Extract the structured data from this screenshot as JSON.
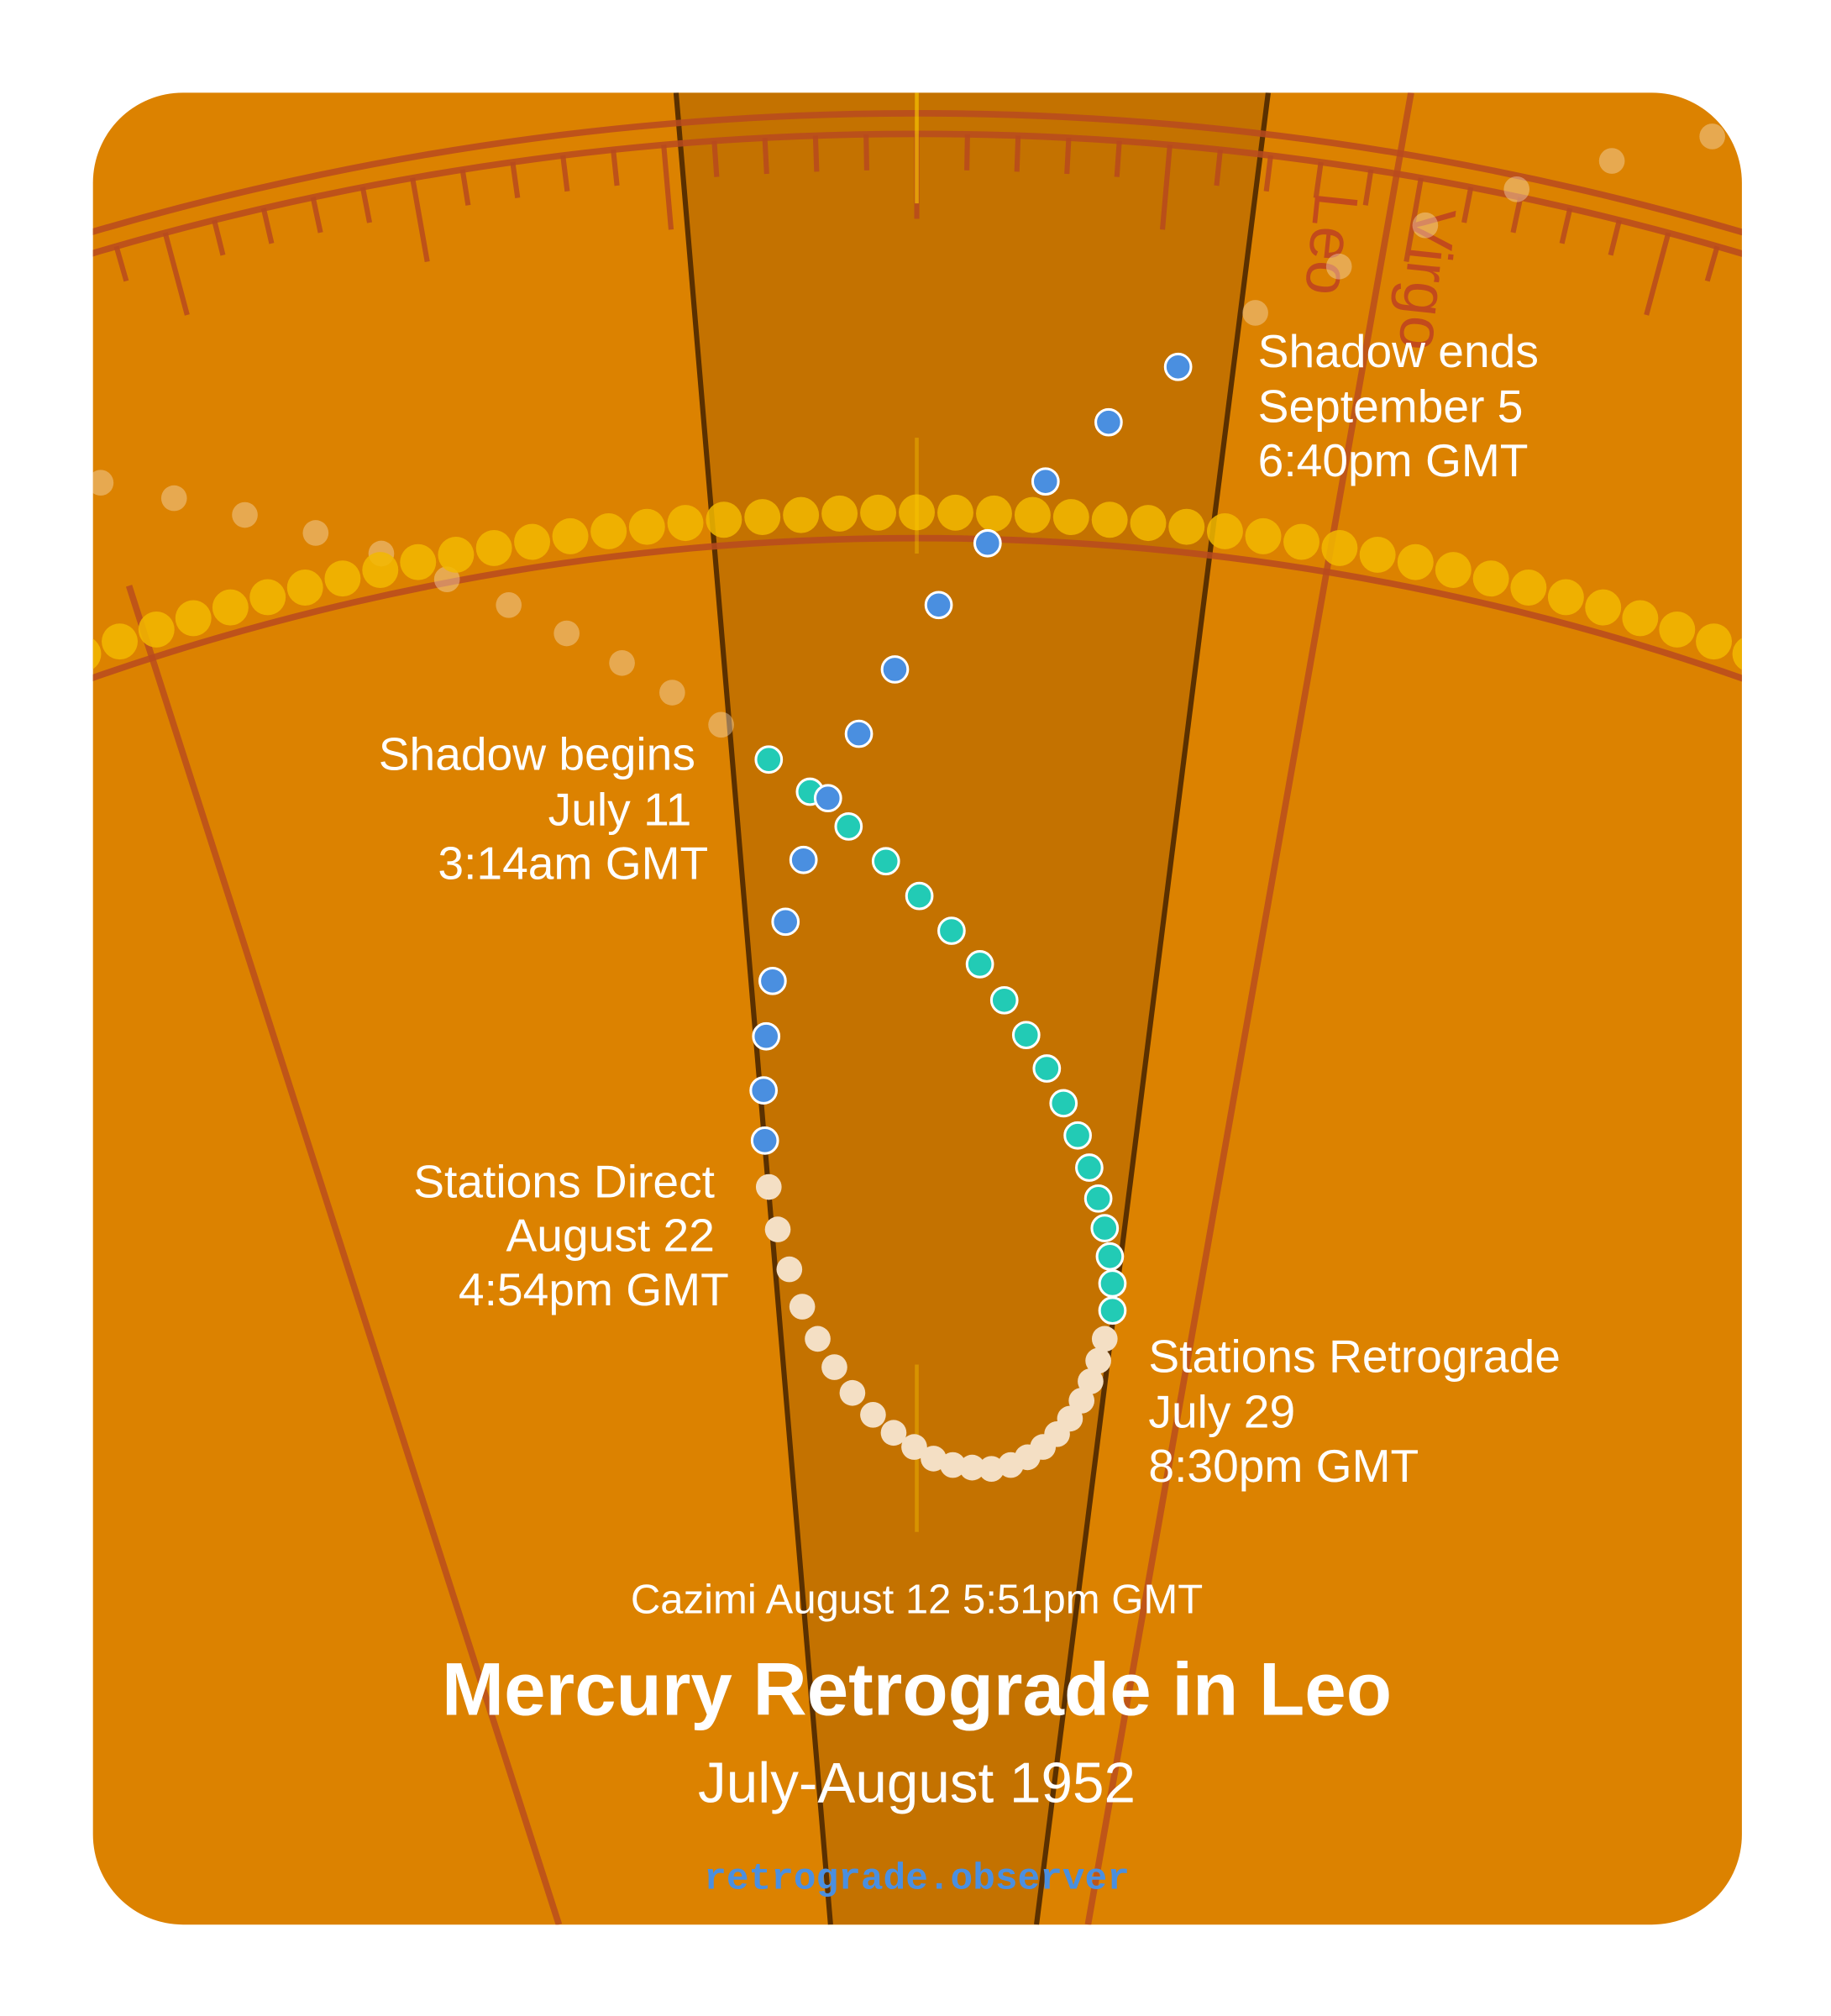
{
  "signs": [
    "Leo",
    "Virgo"
  ],
  "events": [
    {
      "name": "Shadow ends",
      "date": "September 5",
      "time": "6:40pm GMT"
    },
    {
      "name": "Shadow begins",
      "date": "July 11",
      "time": "3:14am GMT"
    },
    {
      "name": "Stations Direct",
      "date": "August 22",
      "time": "4:54pm GMT"
    },
    {
      "name": "Stations Retrograde",
      "date": "July 29",
      "time": "8:30pm GMT"
    }
  ],
  "cazimi": "Cazimi August 12 5:51pm GMT",
  "title": "Mercury Retrograde in Leo",
  "subtitle": "July-August 1952",
  "site": "retrograde.observer"
}
